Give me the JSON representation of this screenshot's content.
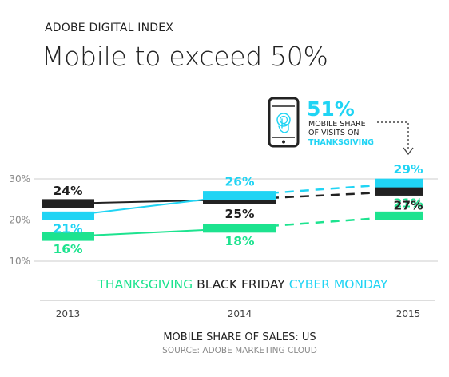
{
  "header": {
    "kicker": "ADOBE DIGITAL INDEX",
    "title": "Mobile to exceed 50%"
  },
  "callout": {
    "value": "51%",
    "line1": "MOBILE SHARE",
    "line2": "OF VISITS ON",
    "line3": "THANKSGIVING",
    "icon": "smartphone-tap-icon"
  },
  "colors": {
    "thanksgiving": "#1de38f",
    "black_friday": "#222222",
    "cyber_monday": "#20d4f4",
    "axis_text": "#8a8a8a"
  },
  "legend": [
    "THANKSGIVING",
    "BLACK FRIDAY",
    "CYBER MONDAY"
  ],
  "footer": {
    "title": "MOBILE SHARE OF SALES: US",
    "source": "SOURCE: ADOBE MARKETING CLOUD"
  },
  "chart_data": {
    "type": "line",
    "title": "MOBILE SHARE OF SALES: US",
    "x": [
      "2013",
      "2014",
      "2015"
    ],
    "yticks": [
      "10%",
      "20%",
      "30%"
    ],
    "ylim": [
      10,
      30
    ],
    "projected_from_index": 1,
    "series": [
      {
        "name": "THANKSGIVING",
        "key": "thanksgiving",
        "values": [
          16,
          18,
          21
        ],
        "labels": [
          "16%",
          "18%",
          "21%"
        ]
      },
      {
        "name": "BLACK FRIDAY",
        "key": "black_friday",
        "values": [
          24,
          25,
          27
        ],
        "labels": [
          "24%",
          "25%",
          "27%"
        ]
      },
      {
        "name": "CYBER MONDAY",
        "key": "cyber_monday",
        "values": [
          21,
          26,
          29
        ],
        "labels": [
          "21%",
          "26%",
          "29%"
        ]
      }
    ]
  }
}
